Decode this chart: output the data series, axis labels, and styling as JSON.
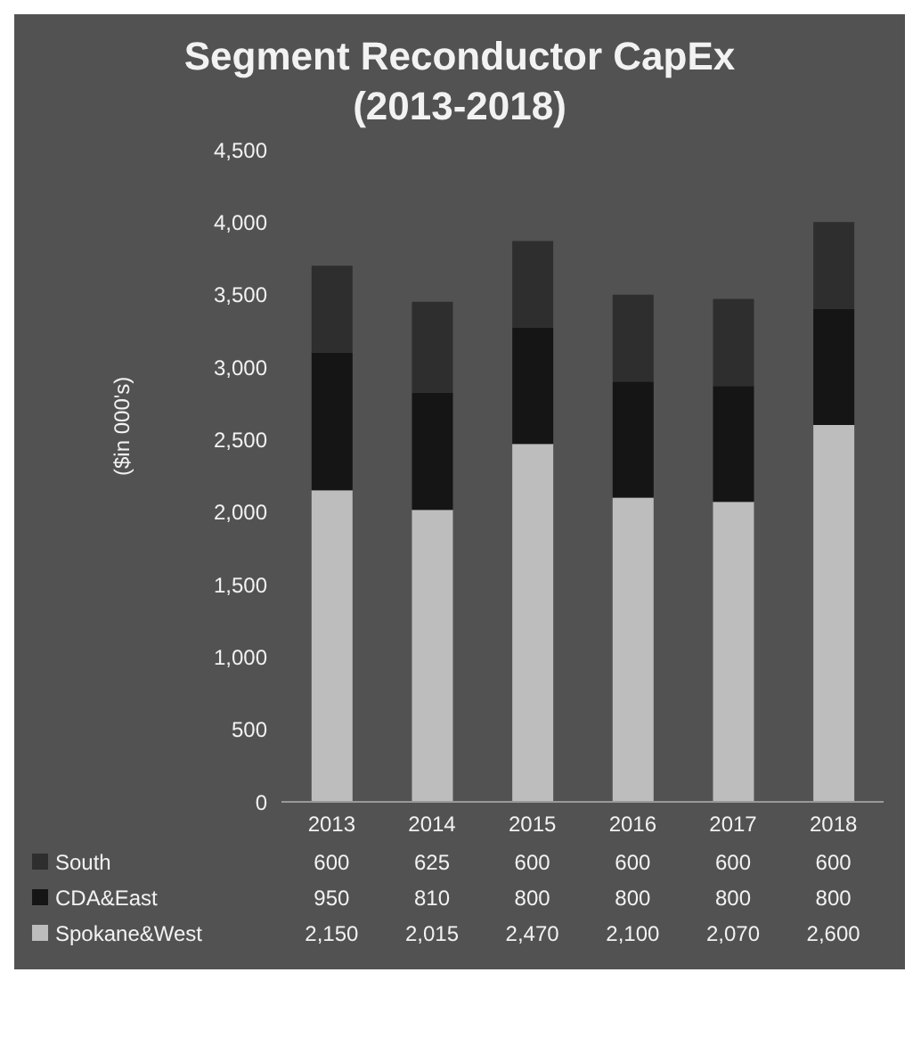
{
  "chart_data": {
    "type": "bar",
    "title": "Segment Reconductor CapEx\n(2013-2018)",
    "ylabel": "($in 000's)",
    "categories": [
      "2013",
      "2014",
      "2015",
      "2016",
      "2017",
      "2018"
    ],
    "stacked": true,
    "legend": "bottom",
    "grid": false,
    "series": [
      {
        "name": "Spokane&West",
        "color": "#bdbdbd",
        "values": [
          2150,
          2015,
          2470,
          2100,
          2070,
          2600
        ],
        "value_labels": [
          "2,150",
          "2,015",
          "2,470",
          "2,100",
          "2,070",
          "2,600"
        ]
      },
      {
        "name": "CDA&East",
        "color": "#151515",
        "values": [
          950,
          810,
          800,
          800,
          800,
          800
        ],
        "value_labels": [
          "950",
          "810",
          "800",
          "800",
          "800",
          "800"
        ]
      },
      {
        "name": "South",
        "color": "#2e2e2e",
        "values": [
          600,
          625,
          600,
          600,
          600,
          600
        ],
        "value_labels": [
          "600",
          "625",
          "600",
          "600",
          "600",
          "600"
        ]
      }
    ],
    "ylim": [
      0,
      4500
    ],
    "yticks": [
      {
        "value": 0,
        "label": "0"
      },
      {
        "value": 500,
        "label": "500"
      },
      {
        "value": 1000,
        "label": "1,000"
      },
      {
        "value": 1500,
        "label": "1,500"
      },
      {
        "value": 2000,
        "label": "2,000"
      },
      {
        "value": 2500,
        "label": "2,500"
      },
      {
        "value": 3000,
        "label": "3,000"
      },
      {
        "value": 3500,
        "label": "3,500"
      },
      {
        "value": 4000,
        "label": "4,000"
      },
      {
        "value": 4500,
        "label": "4,500"
      }
    ]
  }
}
